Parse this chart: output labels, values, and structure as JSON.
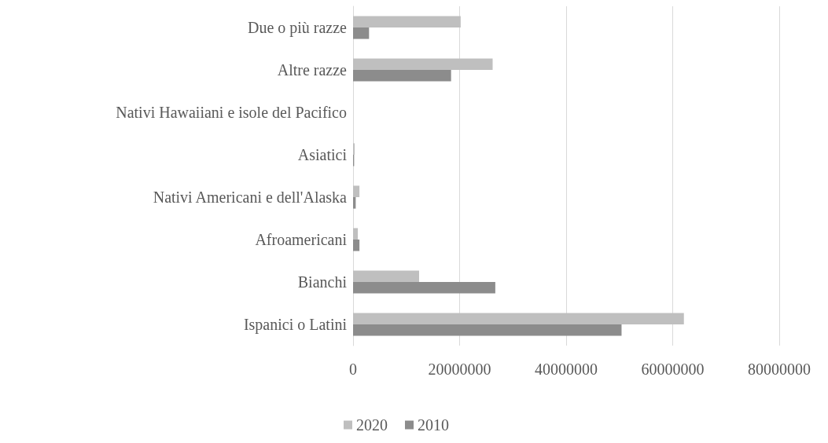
{
  "chart_data": {
    "type": "bar",
    "orientation": "horizontal",
    "categories": [
      "Due o più razze",
      "Altre razze",
      "Nativi Hawaiiani e isole del Pacifico",
      "Asiatici",
      "Nativi Americani e dell'Alaska",
      "Afroamericani",
      "Bianchi",
      "Ispanici o Latini"
    ],
    "series": [
      {
        "name": "2020",
        "color": "#bfbfbf",
        "values": [
          20200000,
          26200000,
          0,
          300000,
          1200000,
          900000,
          12400000,
          62100000
        ]
      },
      {
        "name": "2010",
        "color": "#8c8c8c",
        "values": [
          3000000,
          18400000,
          0,
          200000,
          500000,
          1200000,
          26700000,
          50400000
        ]
      }
    ],
    "xlim": [
      0,
      80000000
    ],
    "xticks": [
      0,
      20000000,
      40000000,
      60000000,
      80000000
    ],
    "grid": "x",
    "legend": "bottom"
  }
}
